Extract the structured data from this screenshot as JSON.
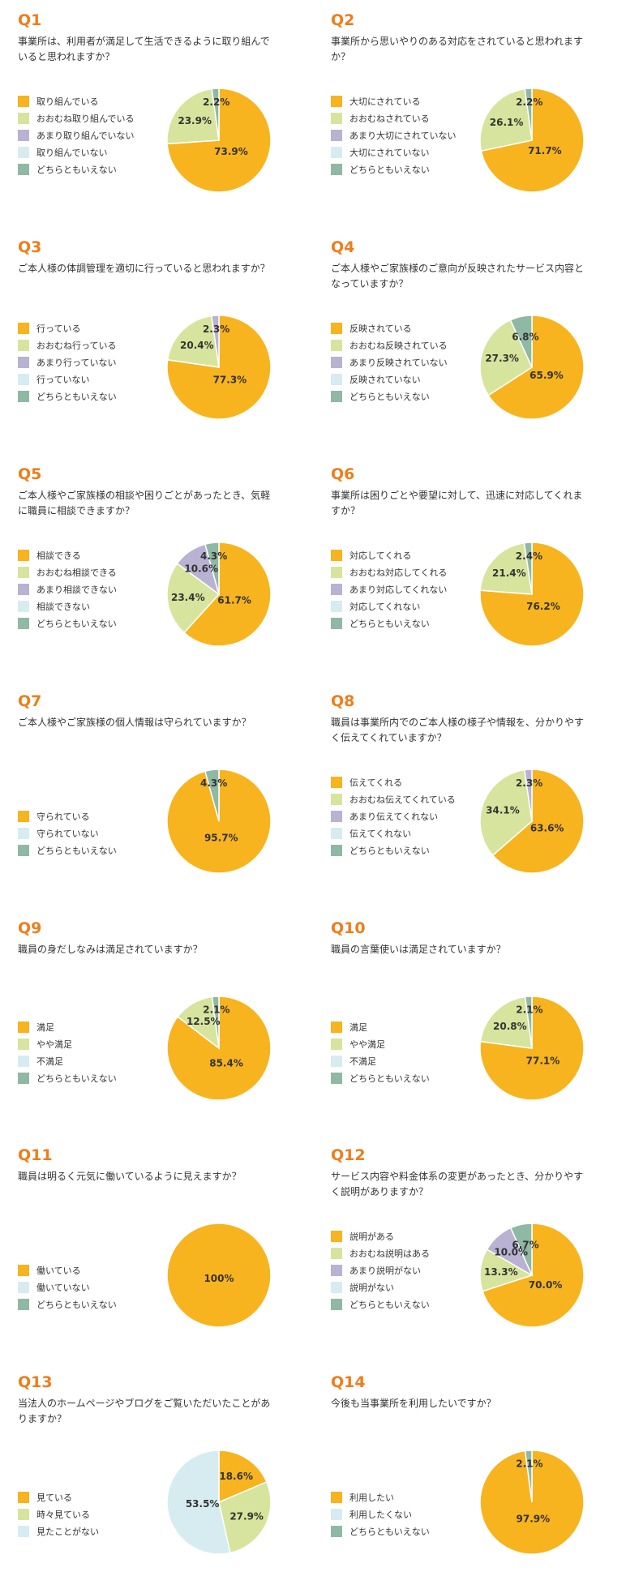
{
  "colors": {
    "q_label": "#ef7d1a",
    "strong_yes": "#f7b41f",
    "mostly_yes": "#d7e49d",
    "mostly_no": "#b9b2d3",
    "no": "#d6ecf1",
    "neutral": "#8fb8a5"
  },
  "charts": [
    {
      "label": "Q1",
      "question": "事業所は、利用者が満足して生活できるように取り組んでいると思われますか？",
      "legend": [
        "取り組んでいる",
        "おおむね取り組んでいる",
        "あまり取り組んでいない",
        "取り組んでいない",
        "どちらともいえない"
      ],
      "chart_data": {
        "type": "pie",
        "categories": [
          "取り組んでいる",
          "おおむね取り組んでいる",
          "あまり取り組んでいない",
          "取り組んでいない",
          "どちらともいえない"
        ],
        "values": [
          73.9,
          23.9,
          0,
          0,
          2.2
        ],
        "labels": [
          "73.9%",
          "23.9%",
          "",
          "",
          "2.2%"
        ],
        "colors": [
          "#f7b41f",
          "#d7e49d",
          "#b9b2d3",
          "#d6ecf1",
          "#8fb8a5"
        ]
      }
    },
    {
      "label": "Q2",
      "question": "事業所から思いやりのある対応をされていると思われますか？",
      "legend": [
        "大切にされている",
        "おおむねされている",
        "あまり大切にされていない",
        "大切にされていない",
        "どちらともいえない"
      ],
      "chart_data": {
        "type": "pie",
        "categories": [
          "大切にされている",
          "おおむねされている",
          "あまり大切にされていない",
          "大切にされていない",
          "どちらともいえない"
        ],
        "values": [
          71.7,
          26.1,
          0,
          0,
          2.2
        ],
        "labels": [
          "71.7%",
          "26.1%",
          "",
          "",
          "2.2%"
        ],
        "colors": [
          "#f7b41f",
          "#d7e49d",
          "#b9b2d3",
          "#d6ecf1",
          "#8fb8a5"
        ]
      }
    },
    {
      "label": "Q3",
      "question": "ご本人様の体調管理を適切に行っていると思われますか？",
      "legend": [
        "行っている",
        "おおむね行っている",
        "あまり行っていない",
        "行っていない",
        "どちらともいえない"
      ],
      "chart_data": {
        "type": "pie",
        "categories": [
          "行っている",
          "おおむね行っている",
          "あまり行っていない",
          "行っていない",
          "どちらともいえない"
        ],
        "values": [
          77.3,
          20.4,
          2.3,
          0,
          0
        ],
        "labels": [
          "77.3%",
          "20.4%",
          "2.3%",
          "",
          ""
        ],
        "colors": [
          "#f7b41f",
          "#d7e49d",
          "#b9b2d3",
          "#d6ecf1",
          "#8fb8a5"
        ]
      }
    },
    {
      "label": "Q4",
      "question": "ご本人様やご家族様のご意向が反映されたサービス内容となっていますか？",
      "legend": [
        "反映されている",
        "おおむね反映されている",
        "あまり反映されていない",
        "反映されていない",
        "どちらともいえない"
      ],
      "chart_data": {
        "type": "pie",
        "categories": [
          "反映されている",
          "おおむね反映されている",
          "あまり反映されていない",
          "反映されていない",
          "どちらともいえない"
        ],
        "values": [
          65.9,
          27.3,
          0,
          0,
          6.8
        ],
        "labels": [
          "65.9%",
          "27.3%",
          "",
          "",
          "6.8%"
        ],
        "colors": [
          "#f7b41f",
          "#d7e49d",
          "#b9b2d3",
          "#d6ecf1",
          "#8fb8a5"
        ]
      }
    },
    {
      "label": "Q5",
      "question": "ご本人様やご家族様の相談や困りごとがあったとき、気軽に職員に相談できますか？",
      "legend": [
        "相談できる",
        "おおむね相談できる",
        "あまり相談できない",
        "相談できない",
        "どちらともいえない"
      ],
      "chart_data": {
        "type": "pie",
        "categories": [
          "相談できる",
          "おおむね相談できる",
          "あまり相談できない",
          "相談できない",
          "どちらともいえない"
        ],
        "values": [
          61.7,
          23.4,
          10.6,
          0,
          4.3
        ],
        "labels": [
          "61.7%",
          "23.4%",
          "10.6%",
          "",
          "4.3%"
        ],
        "colors": [
          "#f7b41f",
          "#d7e49d",
          "#b9b2d3",
          "#d6ecf1",
          "#8fb8a5"
        ]
      }
    },
    {
      "label": "Q6",
      "question": "事業所は困りごとや要望に対して、迅速に対応してくれますか？",
      "legend": [
        "対応してくれる",
        "おおむね対応してくれる",
        "あまり対応してくれない",
        "対応してくれない",
        "どちらともいえない"
      ],
      "chart_data": {
        "type": "pie",
        "categories": [
          "対応してくれる",
          "おおむね対応してくれる",
          "あまり対応してくれない",
          "対応してくれない",
          "どちらともいえない"
        ],
        "values": [
          76.2,
          21.4,
          0,
          0,
          2.4
        ],
        "labels": [
          "76.2%",
          "21.4%",
          "",
          "",
          "2.4%"
        ],
        "colors": [
          "#f7b41f",
          "#d7e49d",
          "#b9b2d3",
          "#d6ecf1",
          "#8fb8a5"
        ]
      }
    },
    {
      "label": "Q7",
      "question": "ご本人様やご家族様の個人情報は守られていますか？",
      "legend": [
        "守られている",
        "守られていない",
        "どちらともいえない"
      ],
      "chart_data": {
        "type": "pie",
        "categories": [
          "守られている",
          "守られていない",
          "どちらともいえない"
        ],
        "values": [
          95.7,
          0,
          4.3
        ],
        "labels": [
          "95.7%",
          "",
          "4.3%"
        ],
        "colors": [
          "#f7b41f",
          "#d6ecf1",
          "#8fb8a5"
        ]
      }
    },
    {
      "label": "Q8",
      "question": "職員は事業所内でのご本人様の様子や情報を、分かりやすく伝えてくれていますか？",
      "legend": [
        "伝えてくれる",
        "おおむね伝えてくれている",
        "あまり伝えてくれない",
        "伝えてくれない",
        "どちらともいえない"
      ],
      "chart_data": {
        "type": "pie",
        "categories": [
          "伝えてくれる",
          "おおむね伝えてくれている",
          "あまり伝えてくれない",
          "伝えてくれない",
          "どちらともいえない"
        ],
        "values": [
          63.6,
          34.1,
          2.3,
          0,
          0
        ],
        "labels": [
          "63.6%",
          "34.1%",
          "2.3%",
          "",
          ""
        ],
        "colors": [
          "#f7b41f",
          "#d7e49d",
          "#b9b2d3",
          "#d6ecf1",
          "#8fb8a5"
        ]
      }
    },
    {
      "label": "Q9",
      "question": "職員の身だしなみは満足されていますか？",
      "legend": [
        "満足",
        "やや満足",
        "不満足",
        "どちらともいえない"
      ],
      "chart_data": {
        "type": "pie",
        "categories": [
          "満足",
          "やや満足",
          "不満足",
          "どちらともいえない"
        ],
        "values": [
          85.4,
          12.5,
          0,
          2.1
        ],
        "labels": [
          "85.4%",
          "12.5%",
          "",
          "2.1%"
        ],
        "colors": [
          "#f7b41f",
          "#d7e49d",
          "#d6ecf1",
          "#8fb8a5"
        ]
      }
    },
    {
      "label": "Q10",
      "question": "職員の言葉使いは満足されていますか？",
      "legend": [
        "満足",
        "やや満足",
        "不満足",
        "どちらともいえない"
      ],
      "chart_data": {
        "type": "pie",
        "categories": [
          "満足",
          "やや満足",
          "不満足",
          "どちらともいえない"
        ],
        "values": [
          77.1,
          20.8,
          0,
          2.1
        ],
        "labels": [
          "77.1%",
          "20.8%",
          "",
          "2.1%"
        ],
        "colors": [
          "#f7b41f",
          "#d7e49d",
          "#d6ecf1",
          "#8fb8a5"
        ]
      }
    },
    {
      "label": "Q11",
      "question": "職員は明るく元気に働いているように見えますか？",
      "legend": [
        "働いている",
        "働いていない",
        "どちらともいえない"
      ],
      "chart_data": {
        "type": "pie",
        "categories": [
          "働いている",
          "働いていない",
          "どちらともいえない"
        ],
        "values": [
          100,
          0,
          0
        ],
        "labels": [
          "100%",
          "",
          ""
        ],
        "colors": [
          "#f7b41f",
          "#d6ecf1",
          "#8fb8a5"
        ]
      }
    },
    {
      "label": "Q12",
      "question": "サービス内容や料金体系の変更があったとき、分かりやすく説明がありますか？",
      "legend": [
        "説明がある",
        "おおむね説明はある",
        "あまり説明がない",
        "説明がない",
        "どちらともいえない"
      ],
      "chart_data": {
        "type": "pie",
        "categories": [
          "説明がある",
          "おおむね説明はある",
          "あまり説明がない",
          "説明がない",
          "どちらともいえない"
        ],
        "values": [
          70.0,
          13.3,
          10.0,
          0,
          6.7
        ],
        "labels": [
          "70.0%",
          "13.3%",
          "10.0%",
          "",
          "6.7%"
        ],
        "colors": [
          "#f7b41f",
          "#d7e49d",
          "#b9b2d3",
          "#d6ecf1",
          "#8fb8a5"
        ]
      }
    },
    {
      "label": "Q13",
      "question": "当法人のホームページやブログをご覧いただいたことがありますか？",
      "legend": [
        "見ている",
        "時々見ている",
        "見たことがない"
      ],
      "chart_data": {
        "type": "pie",
        "categories": [
          "見ている",
          "時々見ている",
          "見たことがない"
        ],
        "values": [
          18.6,
          27.9,
          53.5
        ],
        "labels": [
          "18.6%",
          "27.9%",
          "53.5%"
        ],
        "colors": [
          "#f7b41f",
          "#d7e49d",
          "#d6ecf1"
        ]
      }
    },
    {
      "label": "Q14",
      "question": "今後も当事業所を利用したいですか？",
      "legend": [
        "利用したい",
        "利用したくない",
        "どちらともいえない"
      ],
      "chart_data": {
        "type": "pie",
        "categories": [
          "利用したい",
          "利用したくない",
          "どちらともいえない"
        ],
        "values": [
          97.9,
          0,
          2.1
        ],
        "labels": [
          "97.9%",
          "",
          "2.1%"
        ],
        "colors": [
          "#f7b41f",
          "#d6ecf1",
          "#8fb8a5"
        ]
      }
    }
  ]
}
